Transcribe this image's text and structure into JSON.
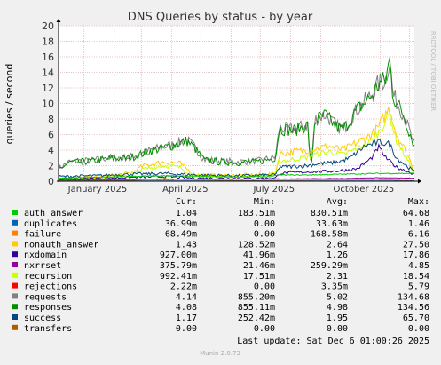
{
  "chart_data": {
    "type": "line",
    "title": "DNS Queries by status - by year",
    "ylabel": "queries / second",
    "xlabel": "",
    "ylim": [
      0,
      20
    ],
    "yticks": [
      0,
      2,
      4,
      6,
      8,
      10,
      12,
      14,
      16,
      18,
      20
    ],
    "xticks": [
      "January 2025",
      "April 2025",
      "July 2025",
      "October 2025"
    ],
    "x_range": [
      "2024-12-06",
      "2025-12-06"
    ],
    "grid": true,
    "legend_placement": "bottom",
    "side_label": "RRDTOOL / TOBI OETIKER",
    "footer": "Munin 2.0.73",
    "last_update": "Last update: Sat Dec  6 01:00:26 2025",
    "columns": [
      "Cur:",
      "Min:",
      "Avg:",
      "Max:"
    ],
    "series": [
      {
        "name": "auth_answer",
        "color": "#00cc00",
        "cur": "1.04",
        "min": "183.51m",
        "avg": "830.51m",
        "max": "64.68"
      },
      {
        "name": "duplicates",
        "color": "#0066b3",
        "cur": "36.99m",
        "min": "0.00",
        "avg": "33.63m",
        "max": "1.46"
      },
      {
        "name": "failure",
        "color": "#ff8000",
        "cur": "68.49m",
        "min": "0.00",
        "avg": "168.58m",
        "max": "6.16"
      },
      {
        "name": "nonauth_answer",
        "color": "#ffcc00",
        "cur": "1.43",
        "min": "128.52m",
        "avg": "2.64",
        "max": "27.50"
      },
      {
        "name": "nxdomain",
        "color": "#330099",
        "cur": "927.00m",
        "min": "41.96m",
        "avg": "1.26",
        "max": "17.86"
      },
      {
        "name": "nxrrset",
        "color": "#990099",
        "cur": "375.79m",
        "min": "21.46m",
        "avg": "259.29m",
        "max": "4.85"
      },
      {
        "name": "recursion",
        "color": "#ccff00",
        "cur": "992.41m",
        "min": "17.51m",
        "avg": "2.31",
        "max": "18.54"
      },
      {
        "name": "rejections",
        "color": "#ff0000",
        "cur": "2.22m",
        "min": "0.00",
        "avg": "3.35m",
        "max": "5.79"
      },
      {
        "name": "requests",
        "color": "#808080",
        "cur": "4.14",
        "min": "855.20m",
        "avg": "5.02",
        "max": "134.68"
      },
      {
        "name": "responses",
        "color": "#008f00",
        "cur": "4.08",
        "min": "855.11m",
        "avg": "4.98",
        "max": "134.56"
      },
      {
        "name": "success",
        "color": "#00487d",
        "cur": "1.17",
        "min": "252.42m",
        "avg": "1.95",
        "max": "65.70"
      },
      {
        "name": "transfers",
        "color": "#b35a00",
        "cur": "0.00",
        "min": "0.00",
        "avg": "0.00",
        "max": "0.00"
      }
    ]
  }
}
